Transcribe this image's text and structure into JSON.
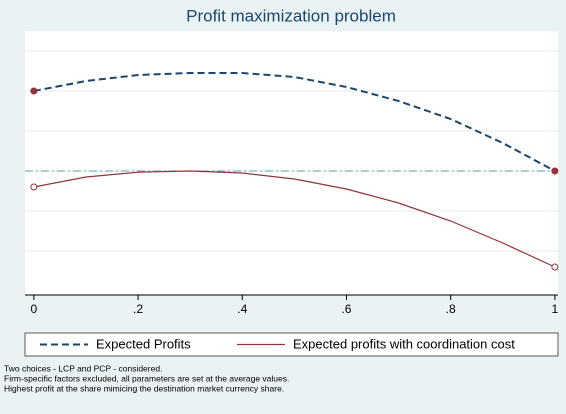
{
  "chart_data": {
    "type": "line",
    "title": "Profit maximization problem",
    "x": [
      0,
      0.1,
      0.2,
      0.3,
      0.4,
      0.5,
      0.6,
      0.7,
      0.8,
      0.9,
      1
    ],
    "series": [
      {
        "name": "Expected Profits",
        "color": "#1a476f",
        "dash": "dash",
        "marker": "filled",
        "values": [
          5.0,
          5.25,
          5.4,
          5.45,
          5.45,
          5.35,
          5.1,
          4.75,
          4.3,
          3.7,
          3.0
        ]
      },
      {
        "name": "Expected profits with coordination cost",
        "color": "#90353b",
        "dash": "solid",
        "marker": "hollow",
        "values": [
          2.6,
          2.85,
          2.97,
          3.0,
          2.95,
          2.8,
          2.55,
          2.2,
          1.75,
          1.2,
          0.6
        ]
      }
    ],
    "hline": 3.0,
    "hline_color": "#55a0b0",
    "xlim": [
      -0.017,
      1.006
    ],
    "xticks": [
      0,
      {
        "value": 0.2,
        "label": ".2"
      },
      {
        "value": 0.4,
        "label": ".4"
      },
      {
        "value": 0.6,
        "label": ".6"
      },
      {
        "value": 0.8,
        "label": ".8"
      },
      1
    ],
    "ylim": [
      -0.1,
      6.5
    ],
    "yticks": [
      1,
      2,
      3,
      4,
      5,
      6
    ],
    "grid": true,
    "legend": "bottom",
    "notes": [
      "Two choices - LCP and PCP - considered.",
      "Firm-specific factors excluded, all parameters are set at the average values.",
      "Highest profit at the share mimicing the destination market currency share."
    ]
  }
}
